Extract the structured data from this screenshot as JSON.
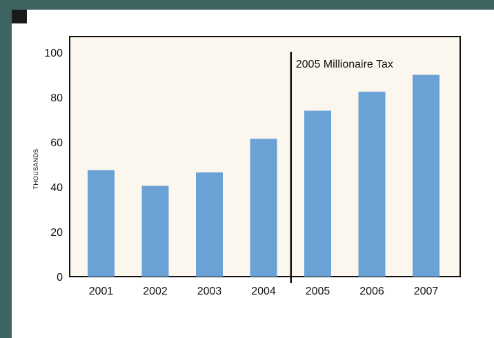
{
  "chart_data": {
    "type": "bar",
    "categories": [
      "2001",
      "2002",
      "2003",
      "2004",
      "2005",
      "2006",
      "2007"
    ],
    "values": [
      47.5,
      40.5,
      46.5,
      61.5,
      74,
      82.5,
      90
    ],
    "ylabel": "THOUSANDS",
    "xlabel": "",
    "ylim": [
      0,
      100
    ],
    "yticks": [
      0,
      20,
      40,
      60,
      80,
      100
    ],
    "grid": false,
    "annotation": {
      "text": "2005 Millionaire Tax",
      "between": [
        "2004",
        "2005"
      ]
    },
    "colors": {
      "bar": "#6aa2d6",
      "plot_background": "#fcf7ee",
      "frame": "#111111"
    }
  }
}
